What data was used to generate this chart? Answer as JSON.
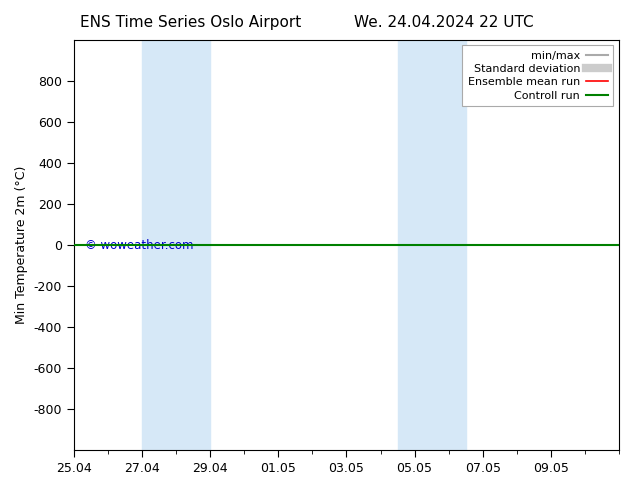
{
  "title_left": "ENS Time Series Oslo Airport",
  "title_right": "We. 24.04.2024 22 UTC",
  "ylabel": "Min Temperature 2m (°C)",
  "xlim": [
    0,
    16
  ],
  "ylim_top": -1000,
  "ylim_bottom": 1000,
  "yticks": [
    -800,
    -600,
    -400,
    -200,
    0,
    200,
    400,
    600,
    800
  ],
  "xtick_positions": [
    0,
    2,
    4,
    6,
    8,
    10,
    12,
    14
  ],
  "xtick_labels": [
    "25.04",
    "27.04",
    "29.04",
    "01.05",
    "03.05",
    "05.05",
    "07.05",
    "09.05"
  ],
  "shaded_bands": [
    {
      "x_start": 2.0,
      "x_end": 4.0
    },
    {
      "x_start": 9.5,
      "x_end": 11.5
    }
  ],
  "shaded_color": "#d6e8f7",
  "horizontal_line_y": 0,
  "line_green_color": "#008000",
  "line_red_color": "#ff0000",
  "watermark_text": "© woweather.com",
  "watermark_color": "#0000cc",
  "legend_items": [
    {
      "label": "min/max",
      "color": "#aaaaaa",
      "lw": 1.5
    },
    {
      "label": "Standard deviation",
      "color": "#cccccc",
      "lw": 6
    },
    {
      "label": "Ensemble mean run",
      "color": "#ff0000",
      "lw": 1.2
    },
    {
      "label": "Controll run",
      "color": "#008000",
      "lw": 1.5
    }
  ],
  "bg_color": "#ffffff",
  "axes_bg_color": "#ffffff",
  "font_size": 9,
  "title_font_size": 11
}
